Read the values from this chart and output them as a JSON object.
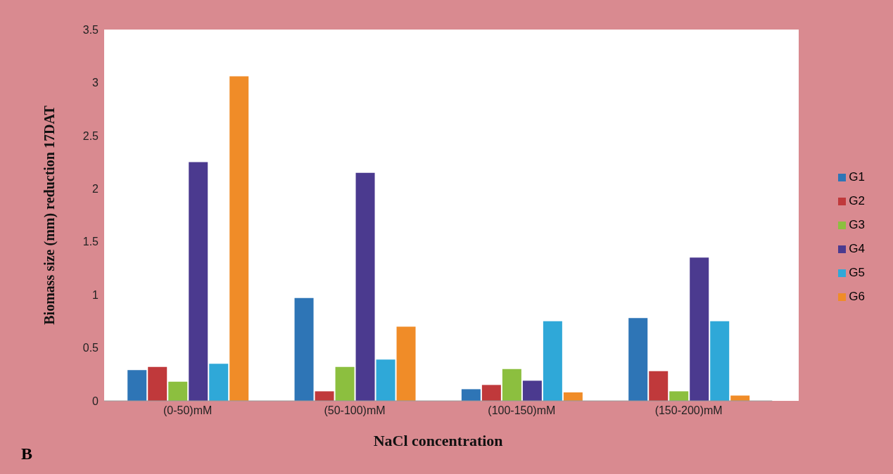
{
  "chart_data": {
    "type": "bar",
    "xlabel": "NaCl concentration",
    "ylabel": "Biomass size (mm) reduction 17DAT",
    "annotations": [
      "B"
    ],
    "categories": [
      "(0-50)mM",
      "(50-100)mM",
      "(100-150)mM",
      "(150-200)mM"
    ],
    "series": [
      {
        "name": "G1",
        "color": "#2e75b6",
        "values": [
          0.29,
          0.97,
          0.11,
          0.78
        ]
      },
      {
        "name": "G2",
        "color": "#c0393b",
        "values": [
          0.32,
          0.09,
          0.15,
          0.28
        ]
      },
      {
        "name": "G3",
        "color": "#8cbf3f",
        "values": [
          0.18,
          0.32,
          0.3,
          0.09
        ]
      },
      {
        "name": "G4",
        "color": "#4b3a8f",
        "values": [
          2.25,
          2.15,
          0.19,
          1.35
        ]
      },
      {
        "name": "G5",
        "color": "#2fa8d8",
        "values": [
          0.35,
          0.39,
          0.75,
          0.75
        ]
      },
      {
        "name": "G6",
        "color": "#f08c28",
        "values": [
          3.06,
          0.7,
          0.08,
          0.05
        ]
      }
    ],
    "ylim": [
      0,
      3.5
    ],
    "yticks": [
      0,
      0.5,
      1,
      1.5,
      2,
      2.5,
      3,
      3.5
    ],
    "legend": "right"
  }
}
